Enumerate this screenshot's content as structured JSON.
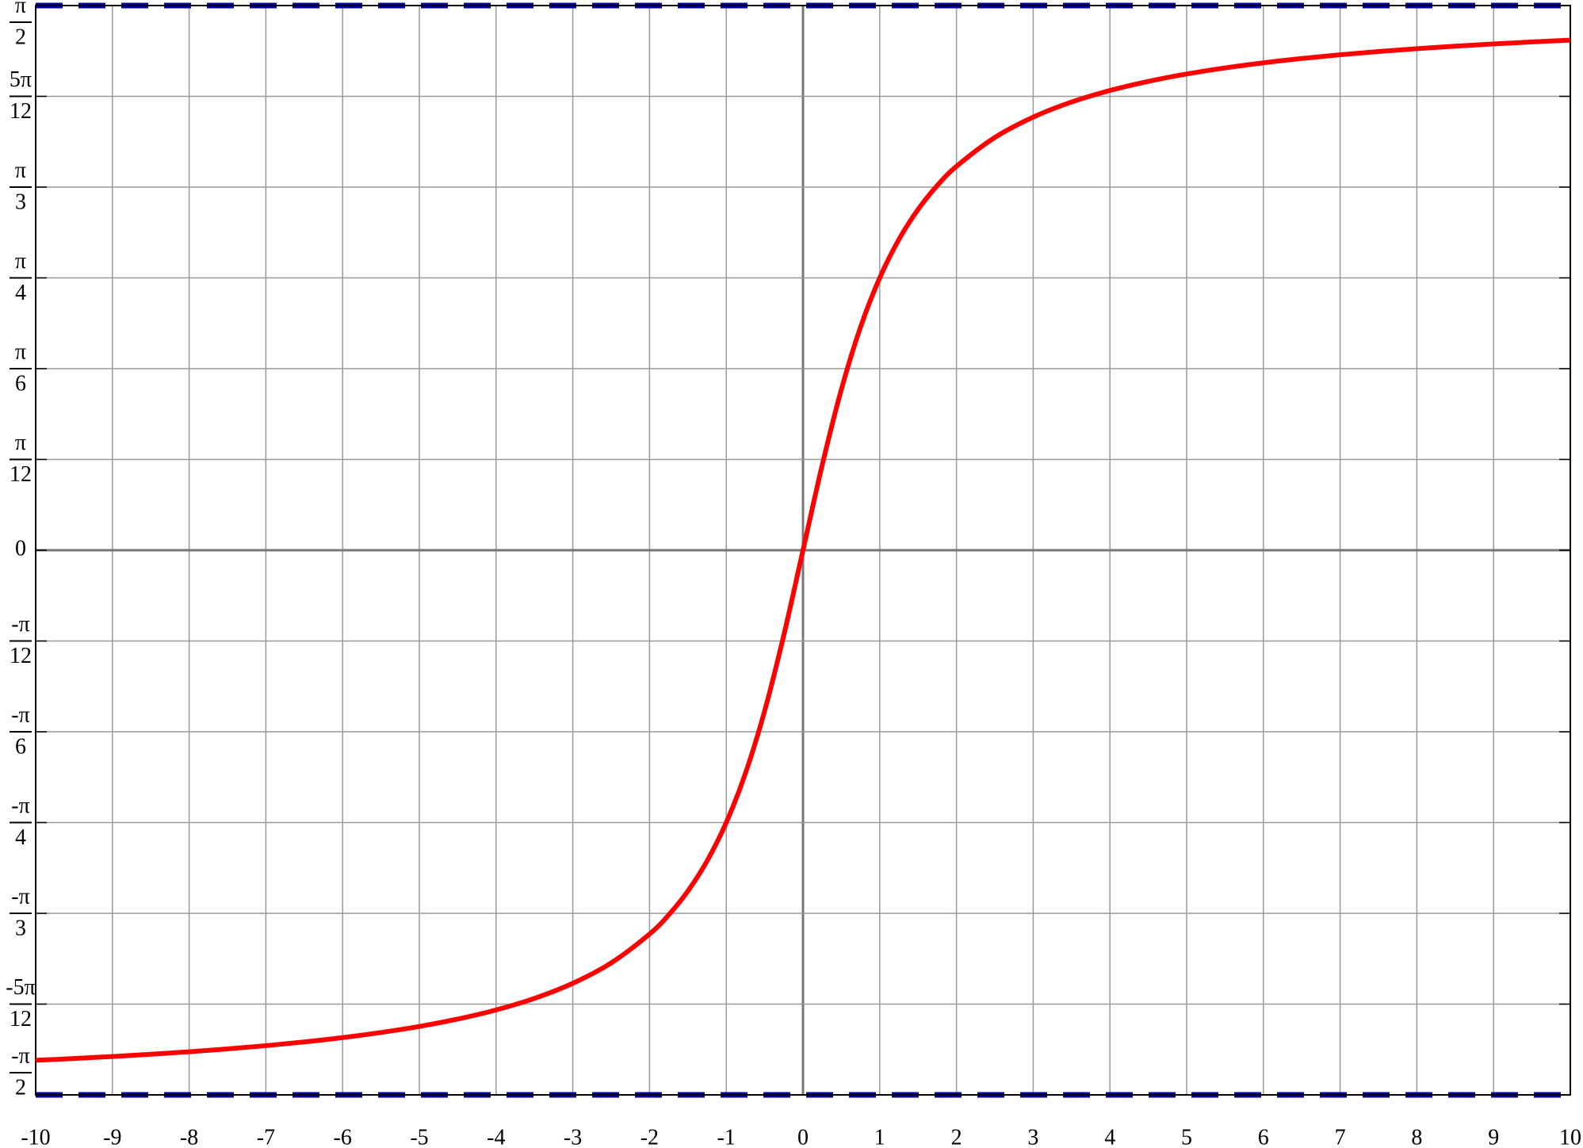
{
  "chart_data": {
    "type": "line",
    "x": [
      -10,
      -9.5,
      -9,
      -8.5,
      -8,
      -7.5,
      -7,
      -6.5,
      -6,
      -5.5,
      -5,
      -4.5,
      -4,
      -3.5,
      -3,
      -2.5,
      -2,
      -1.75,
      -1.5,
      -1.25,
      -1,
      -0.75,
      -0.5,
      -0.25,
      0,
      0.25,
      0.5,
      0.75,
      1,
      1.25,
      1.5,
      1.75,
      2,
      2.5,
      3,
      3.5,
      4,
      4.5,
      5,
      5.5,
      6,
      6.5,
      7,
      7.5,
      8,
      8.5,
      9,
      9.5,
      10
    ],
    "series": [
      {
        "color": "#ff0000",
        "values": [
          -1.4711,
          -1.4659,
          -1.4601,
          -1.4537,
          -1.4464,
          -1.4382,
          -1.4289,
          -1.4181,
          -1.4056,
          -1.3909,
          -1.3734,
          -1.3521,
          -1.3258,
          -1.2925,
          -1.249,
          -1.1903,
          -1.1071,
          -1.0517,
          -0.9828,
          -0.8961,
          -0.7854,
          -0.6435,
          -0.4636,
          -0.245,
          0,
          0.245,
          0.4636,
          0.6435,
          0.7854,
          0.8961,
          0.9828,
          1.0517,
          1.1071,
          1.1903,
          1.249,
          1.2925,
          1.3258,
          1.3521,
          1.3734,
          1.3909,
          1.4056,
          1.4181,
          1.4289,
          1.4382,
          1.4464,
          1.4537,
          1.4601,
          1.4659,
          1.4711
        ]
      }
    ],
    "asymptotes": {
      "values": [
        1.5708,
        -1.5708
      ],
      "color": "#00009b",
      "dashed": true
    },
    "xlim": [
      -10,
      10
    ],
    "xticks": [
      -10,
      -9,
      -8,
      -7,
      -6,
      -5,
      -4,
      -3,
      -2,
      -1,
      0,
      1,
      2,
      3,
      4,
      5,
      6,
      7,
      8,
      9,
      10
    ],
    "ylim": [
      -1.5708,
      1.5708
    ],
    "yticks": [
      {
        "value": -1.5708,
        "label": [
          "-π",
          "2"
        ]
      },
      {
        "value": -1.309,
        "label": [
          "-5π",
          "12"
        ]
      },
      {
        "value": -1.0472,
        "label": [
          "-π",
          "3"
        ]
      },
      {
        "value": -0.7854,
        "label": [
          "-π",
          "4"
        ]
      },
      {
        "value": -0.5236,
        "label": [
          "-π",
          "6"
        ]
      },
      {
        "value": -0.2618,
        "label": [
          "-π",
          "12"
        ]
      },
      0,
      {
        "value": 0.2618,
        "label": [
          "π",
          "12"
        ]
      },
      {
        "value": 0.5236,
        "label": [
          "π",
          "6"
        ]
      },
      {
        "value": 0.7854,
        "label": [
          "π",
          "4"
        ]
      },
      {
        "value": 1.0472,
        "label": [
          "π",
          "3"
        ]
      },
      {
        "value": 1.309,
        "label": [
          "5π",
          "12"
        ]
      },
      {
        "value": 1.5708,
        "label": [
          "π",
          "2"
        ]
      }
    ],
    "grid": true
  }
}
